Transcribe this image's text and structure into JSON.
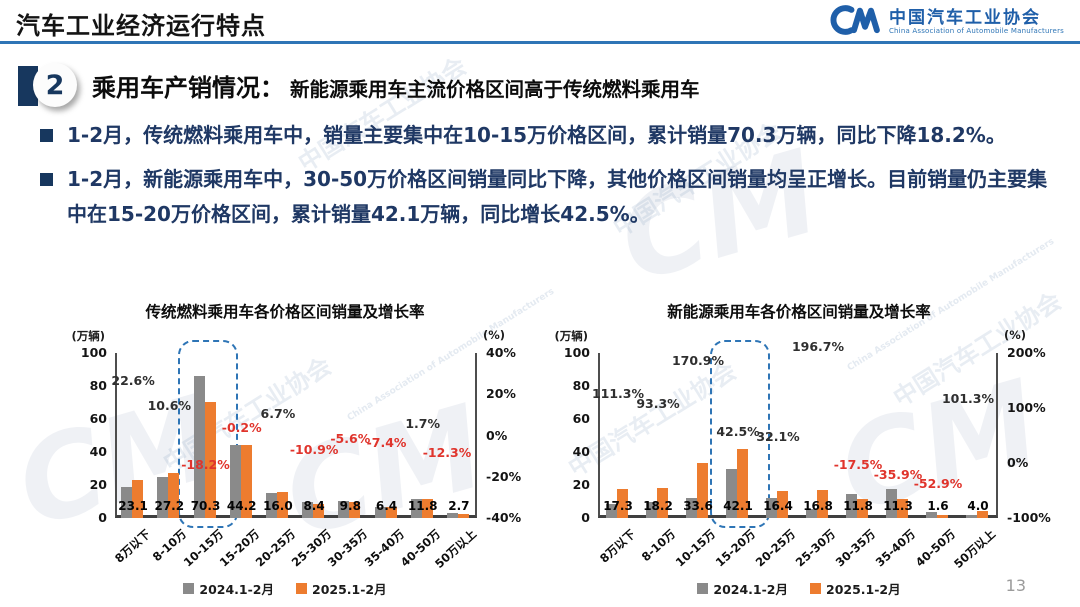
{
  "header": {
    "title": "汽车工业经济运行特点",
    "logo": {
      "monogram": "CM",
      "org_cn": "中国汽车工业协会",
      "org_en": "China Association of Automobile Manufacturers"
    }
  },
  "section": {
    "number": "2",
    "heading": "乘用车产销情况：",
    "subheading": "新能源乘用车主流价格区间高于传统燃料乘用车"
  },
  "bullets": [
    "1-2月，传统燃料乘用车中，销量主要集中在10-15万价格区间，累计销量70.3万辆，同比下降18.2%。",
    "1-2月，新能源乘用车中，30-50万价格区间销量同比下降，其他价格区间销量均呈正增长。目前销量仍主要集中在15-20万价格区间，累计销量42.1万辆，同比增长42.5%。"
  ],
  "legend": {
    "series1": "2024.1-2月",
    "series2": "2025.1-2月"
  },
  "colors": {
    "bar_2024": "#8a8a8a",
    "bar_2025": "#ed7c2f",
    "negative_label": "#e0342c",
    "positive_label": "#2f2f2f",
    "highlight_box": "#2e75b6",
    "accent_blue": "#2e75b6",
    "navy": "#17375e",
    "text_navy": "#1f3864"
  },
  "watermark": {
    "text": "中国汽车工业协会",
    "text_en": "China Association of Automobile Manufacturers",
    "monogram": "CM"
  },
  "page": {
    "page_number": "13"
  },
  "chart_data": [
    {
      "type": "bar",
      "title": "传统燃料乘用车各价格区间销量及增长率",
      "unit_left": "(万辆)",
      "unit_right": "(%)",
      "categories": [
        "8万以下",
        "8-10万",
        "10-15万",
        "15-20万",
        "20-25万",
        "25-30万",
        "30-35万",
        "35-40万",
        "40-50万",
        "50万以上"
      ],
      "series": [
        {
          "name": "2024.1-2月",
          "values": [
            18.8,
            24.6,
            85.9,
            44.3,
            15.0,
            9.4,
            10.4,
            6.9,
            11.6,
            3.1
          ],
          "note": "estimated from bar heights"
        },
        {
          "name": "2025.1-2月",
          "values": [
            23.1,
            27.2,
            70.3,
            44.2,
            16.0,
            8.4,
            9.8,
            6.4,
            11.8,
            2.7
          ]
        }
      ],
      "value_labels": [
        "23.1",
        "27.2",
        "70.3",
        "44.2",
        "16.0",
        "8.4",
        "9.8",
        "6.4",
        "11.8",
        "2.7"
      ],
      "growth_values": [
        22.6,
        10.6,
        -18.2,
        -0.2,
        6.7,
        -10.9,
        -5.6,
        -7.4,
        1.7,
        -12.3
      ],
      "growth_labels": [
        "22.6%",
        "10.6%",
        "-18.2%",
        "-0.2%",
        "6.7%",
        "-10.9%",
        "-5.6%",
        "-7.4%",
        "1.7%",
        "-12.3%"
      ],
      "ylim_left": [
        0,
        100
      ],
      "yticks_left": [
        "100",
        "80",
        "60",
        "40",
        "20",
        "0"
      ],
      "ylim_right": [
        -40,
        40
      ],
      "yticks_right": [
        "40%",
        "20%",
        "0%",
        "-20%",
        "-40%"
      ],
      "highlight_category": "10-15万",
      "highlight_index": 2,
      "legend_position": "bottom",
      "grid": false
    },
    {
      "type": "bar",
      "title": "新能源乘用车各价格区间销量及增长率",
      "unit_left": "(万辆)",
      "unit_right": "(%)",
      "categories": [
        "8万以下",
        "8-10万",
        "10-15万",
        "15-20万",
        "20-25万",
        "25-30万",
        "30-35万",
        "35-40万",
        "40-50万",
        "50万以上"
      ],
      "series": [
        {
          "name": "2024.1-2月",
          "values": [
            8.2,
            9.4,
            12.4,
            29.5,
            12.4,
            5.7,
            14.3,
            17.6,
            3.4,
            2.0
          ],
          "note": "estimated from bar heights"
        },
        {
          "name": "2025.1-2月",
          "values": [
            17.3,
            18.2,
            33.6,
            42.1,
            16.4,
            16.8,
            11.8,
            11.3,
            1.6,
            4.0
          ]
        }
      ],
      "value_labels": [
        "17.3",
        "18.2",
        "33.6",
        "42.1",
        "16.4",
        "16.8",
        "11.8",
        "11.3",
        "1.6",
        "4.0"
      ],
      "growth_values": [
        111.3,
        93.3,
        170.9,
        42.5,
        32.1,
        196.7,
        -17.5,
        -35.9,
        -52.9,
        101.3
      ],
      "growth_labels": [
        "111.3%",
        "93.3%",
        "170.9%",
        "42.5%",
        "32.1%",
        "196.7%",
        "-17.5%",
        "-35.9%",
        "-52.9%",
        "101.3%"
      ],
      "ylim_left": [
        0,
        100
      ],
      "yticks_left": [
        "100",
        "80",
        "60",
        "40",
        "20",
        "0"
      ],
      "ylim_right": [
        -100,
        200
      ],
      "yticks_right": [
        "200%",
        "100%",
        "0%",
        "-100%"
      ],
      "highlight_category": "15-20万",
      "highlight_index": 3,
      "legend_position": "bottom",
      "grid": false
    }
  ]
}
